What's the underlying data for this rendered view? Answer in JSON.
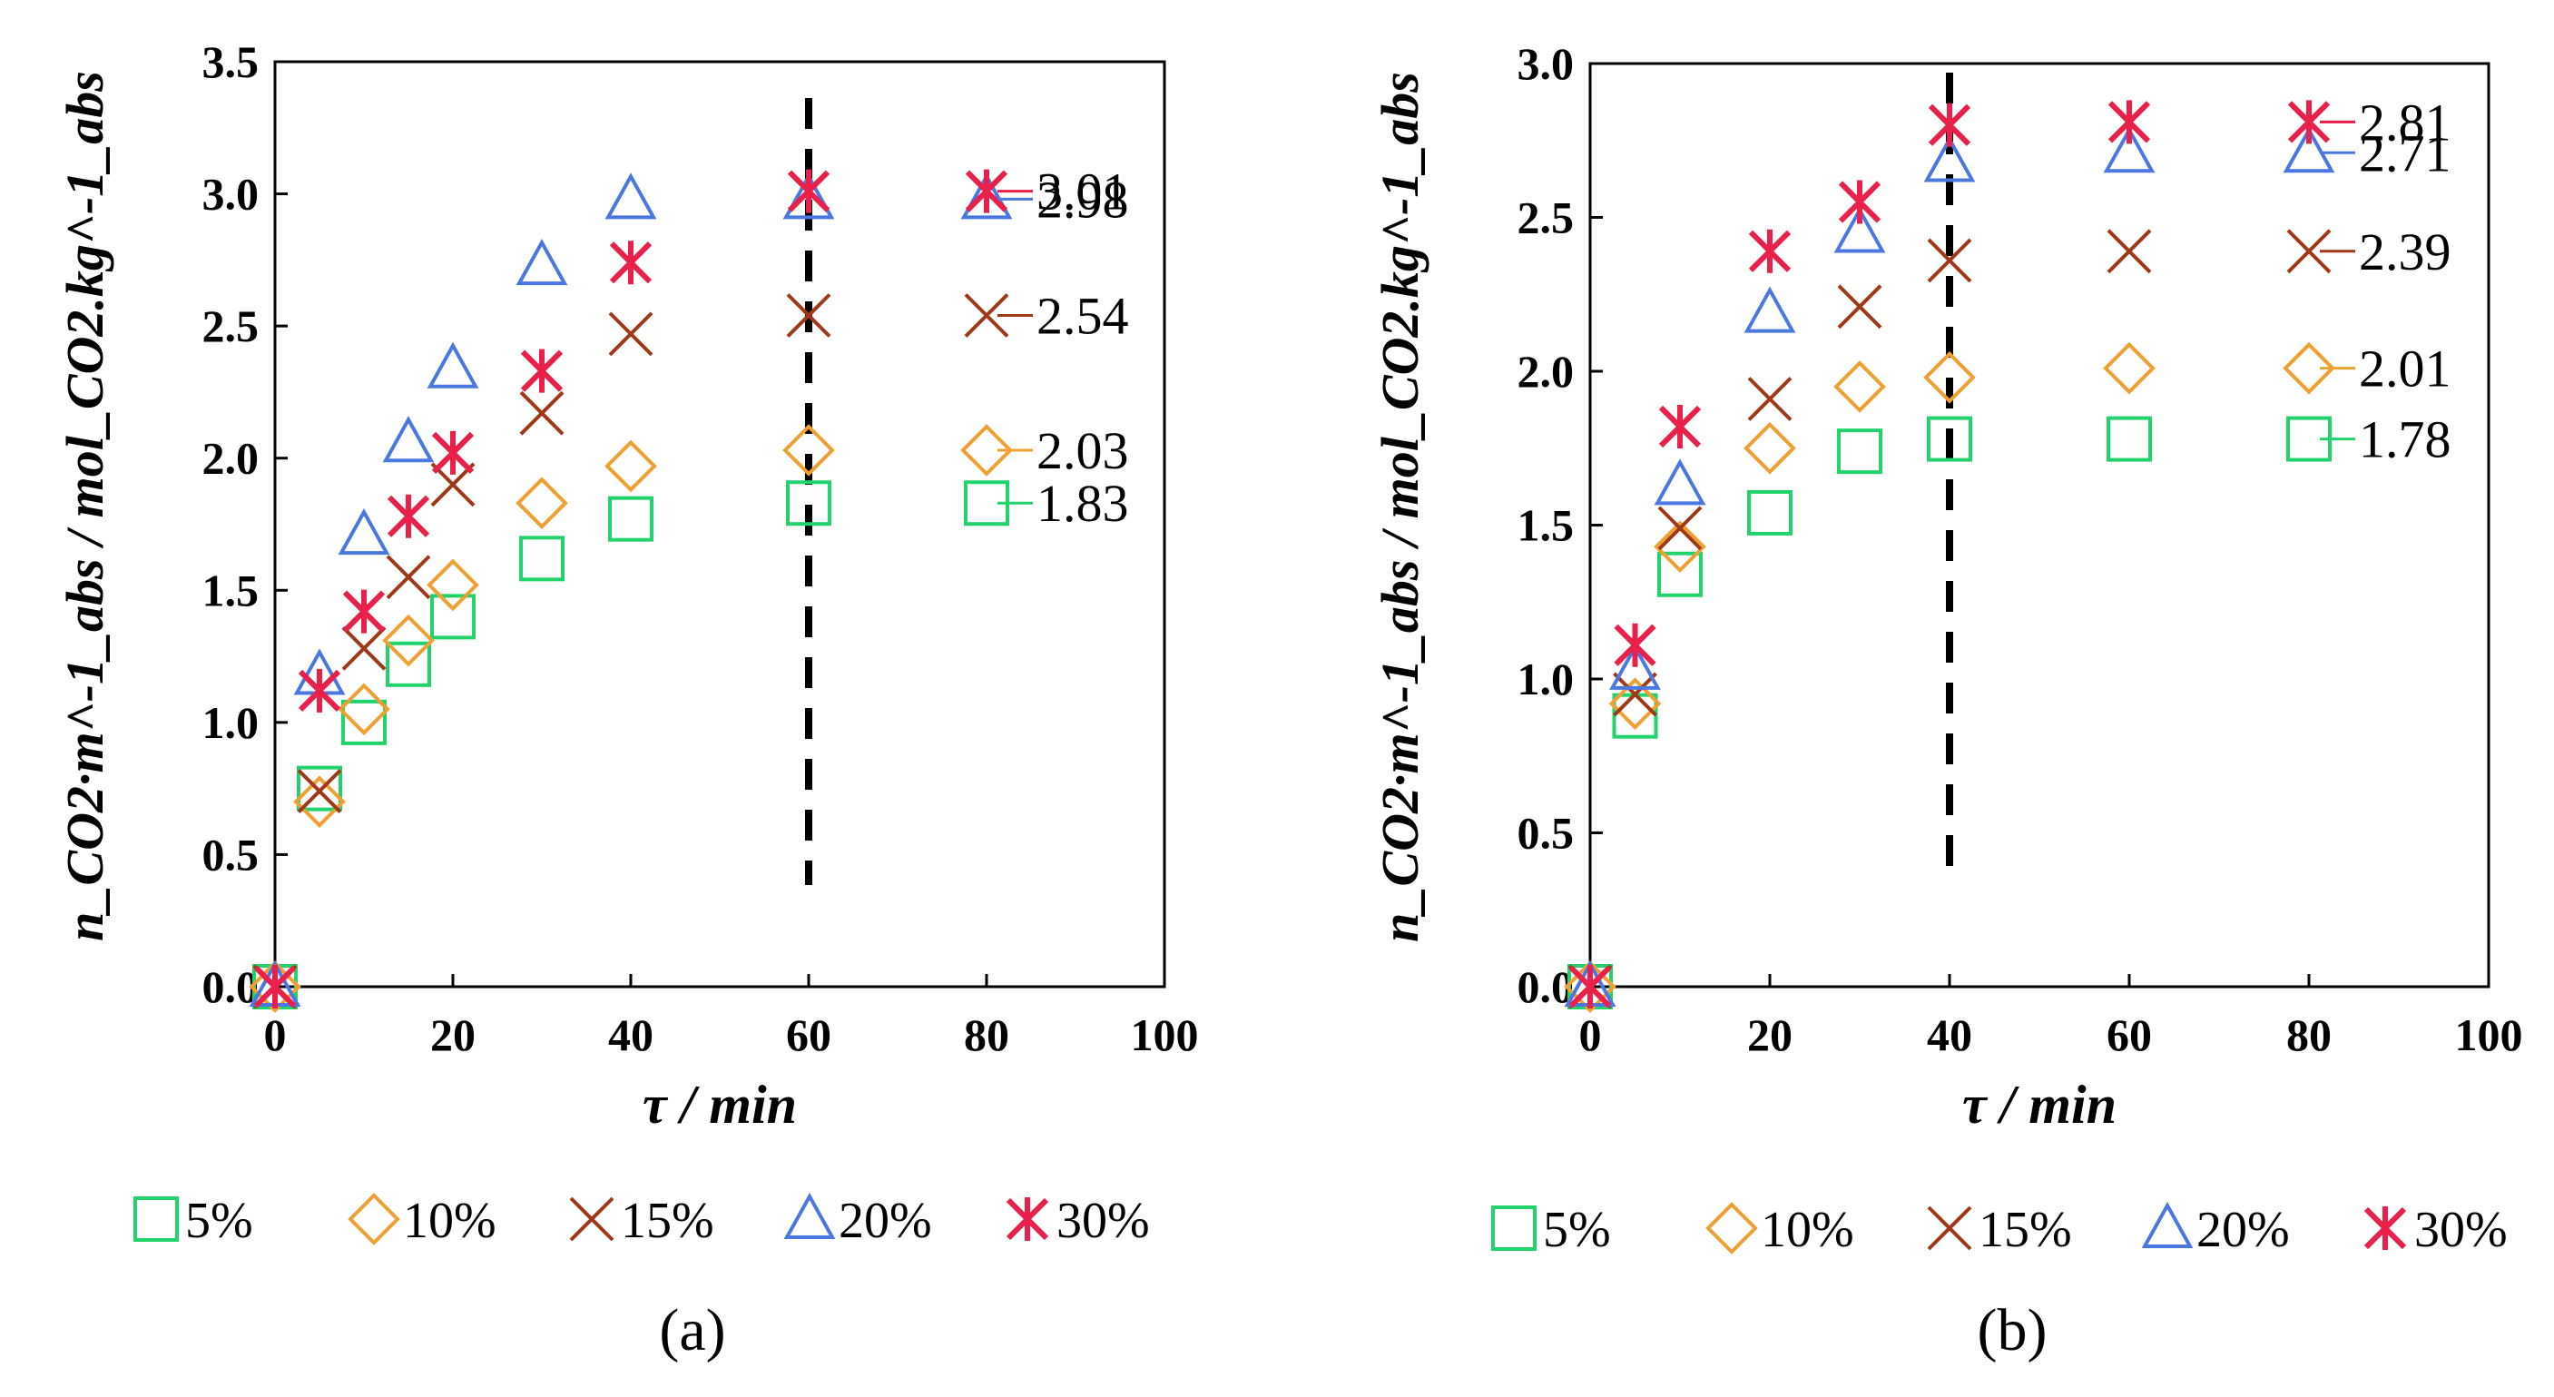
{
  "colors": {
    "5%": "#22d36b",
    "10%": "#f0a030",
    "15%": "#a03818",
    "20%": "#4a78e0",
    "30%": "#e8204a"
  },
  "legend": [
    "5%",
    "10%",
    "15%",
    "20%",
    "30%"
  ],
  "chart_data": [
    {
      "type": "scatter",
      "panel": "(a)",
      "xlabel": "τ / min",
      "ylabel": "n_CO2·m^-1_abs / mol_CO2.kg^-1_abs",
      "xlim": [
        0,
        100
      ],
      "ylim": [
        0,
        3.5
      ],
      "xticks": [
        "0",
        "20",
        "40",
        "60",
        "80",
        "100"
      ],
      "yticks": [
        "0.0",
        "0.5",
        "1.0",
        "1.5",
        "2.0",
        "2.5",
        "3.0",
        "3.5"
      ],
      "vline": 60,
      "series": [
        {
          "name": "5%",
          "marker": "square",
          "x": [
            0,
            5,
            10,
            15,
            20,
            30,
            40,
            60,
            80
          ],
          "y": [
            0,
            0.75,
            1.0,
            1.22,
            1.4,
            1.62,
            1.77,
            1.83,
            1.83
          ]
        },
        {
          "name": "10%",
          "marker": "diamond",
          "x": [
            0,
            5,
            10,
            15,
            20,
            30,
            40,
            60,
            80
          ],
          "y": [
            0,
            0.7,
            1.05,
            1.31,
            1.52,
            1.83,
            1.97,
            2.03,
            2.03
          ]
        },
        {
          "name": "15%",
          "marker": "x",
          "x": [
            0,
            5,
            10,
            15,
            20,
            30,
            40,
            60,
            80
          ],
          "y": [
            0,
            0.74,
            1.28,
            1.55,
            1.9,
            2.17,
            2.47,
            2.54,
            2.54
          ]
        },
        {
          "name": "20%",
          "marker": "triangle",
          "x": [
            0,
            5,
            10,
            15,
            20,
            30,
            40,
            60,
            80
          ],
          "y": [
            0,
            1.18,
            1.71,
            2.06,
            2.34,
            2.73,
            2.98,
            2.98,
            2.98
          ]
        },
        {
          "name": "30%",
          "marker": "star",
          "x": [
            0,
            5,
            10,
            15,
            20,
            30,
            40,
            60,
            80
          ],
          "y": [
            0,
            1.12,
            1.42,
            1.78,
            2.02,
            2.33,
            2.74,
            3.01,
            3.01
          ]
        }
      ],
      "annotations": [
        {
          "text": "3.01",
          "y": 3.01,
          "series": "30%"
        },
        {
          "text": "2.98",
          "y": 2.98,
          "series": "20%"
        },
        {
          "text": "2.54",
          "y": 2.54,
          "series": "15%"
        },
        {
          "text": "2.03",
          "y": 2.03,
          "series": "10%"
        },
        {
          "text": "1.83",
          "y": 1.83,
          "series": "5%"
        }
      ]
    },
    {
      "type": "scatter",
      "panel": "(b)",
      "xlabel": "τ / min",
      "ylabel": "n_CO2·m^-1_abs / mol_CO2.kg^-1_abs",
      "xlim": [
        0,
        100
      ],
      "ylim": [
        0,
        3.0
      ],
      "xticks": [
        "0",
        "20",
        "40",
        "60",
        "80",
        "100"
      ],
      "yticks": [
        "0.0",
        "0.5",
        "1.0",
        "1.5",
        "2.0",
        "2.5",
        "3.0"
      ],
      "vline": 40,
      "series": [
        {
          "name": "5%",
          "marker": "square",
          "x": [
            0,
            5,
            10,
            20,
            30,
            40,
            60,
            80
          ],
          "y": [
            0,
            0.88,
            1.34,
            1.54,
            1.74,
            1.78,
            1.78,
            1.78
          ]
        },
        {
          "name": "10%",
          "marker": "diamond",
          "x": [
            0,
            5,
            10,
            20,
            30,
            40,
            60,
            80
          ],
          "y": [
            0,
            0.92,
            1.43,
            1.75,
            1.95,
            1.98,
            2.01,
            2.01
          ]
        },
        {
          "name": "15%",
          "marker": "x",
          "x": [
            0,
            5,
            10,
            20,
            30,
            40,
            60,
            80
          ],
          "y": [
            0,
            0.95,
            1.49,
            1.91,
            2.21,
            2.36,
            2.39,
            2.39
          ]
        },
        {
          "name": "20%",
          "marker": "triangle",
          "x": [
            0,
            5,
            10,
            20,
            30,
            40,
            60,
            80
          ],
          "y": [
            0,
            1.03,
            1.63,
            2.19,
            2.45,
            2.68,
            2.71,
            2.71
          ]
        },
        {
          "name": "30%",
          "marker": "star",
          "x": [
            0,
            5,
            10,
            20,
            30,
            40,
            60,
            80
          ],
          "y": [
            0,
            1.11,
            1.82,
            2.39,
            2.55,
            2.8,
            2.81,
            2.81
          ]
        }
      ],
      "annotations": [
        {
          "text": "2.81",
          "y": 2.81,
          "series": "30%"
        },
        {
          "text": "2.71",
          "y": 2.71,
          "series": "20%"
        },
        {
          "text": "2.39",
          "y": 2.39,
          "series": "15%"
        },
        {
          "text": "2.01",
          "y": 2.01,
          "series": "10%"
        },
        {
          "text": "1.78",
          "y": 1.78,
          "series": "5%"
        }
      ]
    }
  ]
}
